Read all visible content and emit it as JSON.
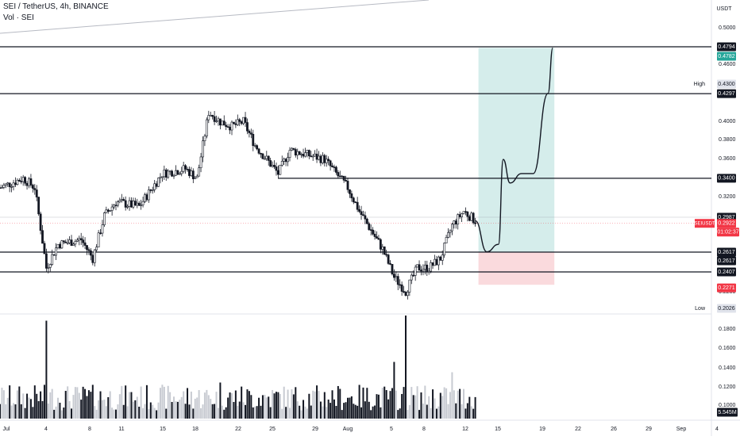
{
  "header": {
    "title": "SEI / TetherUS, 4h, BINANCE",
    "indicator": "Vol · SEI"
  },
  "price_axis": {
    "currency": "USDT",
    "ticks": [
      "0.5000",
      "0.4600",
      "0.4000",
      "0.3800",
      "0.3600",
      "0.3200",
      "0.2200",
      "0.1800",
      "0.1600",
      "0.1400",
      "0.1200",
      "0.1000"
    ]
  },
  "time_axis": {
    "ticks": [
      "Jul",
      "4",
      "8",
      "11",
      "15",
      "18",
      "22",
      "25",
      "29",
      "Aug",
      "5",
      "8",
      "12",
      "15",
      "19",
      "22",
      "26",
      "29",
      "Sep",
      "4"
    ]
  },
  "badges": {
    "level_top": "0.4794",
    "target": "0.4782",
    "high_label": "High",
    "high_value": "0.4300",
    "level_0_4297": "0.4297",
    "level_0_34": "0.3400",
    "level_0_2987": "0.2987",
    "symbol": "SEIUSDT",
    "last_price": "0.2922",
    "countdown": "01:02:37",
    "entry": "0.2617",
    "level_0_2617": "0.2617",
    "level_0_2407": "0.2407",
    "stop": "0.2271",
    "low_label": "Low",
    "low_value": "0.2026",
    "volume": "5.545M"
  },
  "colors": {
    "up": "#ffffff",
    "down": "#131722",
    "reward_zone": "#b2dfdb",
    "risk_zone": "#f8c6cb",
    "target_badge": "#26a69a",
    "price_badge": "#f23645",
    "stop_badge": "#f23645",
    "level_badge": "#131722"
  },
  "chart_data": {
    "type": "candlestick",
    "symbol": "SEI / TetherUS",
    "timeframe": "4h",
    "exchange": "BINANCE",
    "y_range": [
      0.19,
      0.51
    ],
    "last_price": 0.2922,
    "high": 0.43,
    "low": 0.2026,
    "horizontal_levels": [
      0.4794,
      0.4297,
      0.34,
      0.2617,
      0.2407
    ],
    "position": {
      "entry": 0.2617,
      "target": 0.4782,
      "stop": 0.2271
    },
    "close_path": [
      [
        "2024-07-01",
        0.33
      ],
      [
        "2024-07-03",
        0.34
      ],
      [
        "2024-07-04",
        0.33
      ],
      [
        "2024-07-05",
        0.245
      ],
      [
        "2024-07-06",
        0.27
      ],
      [
        "2024-07-08",
        0.275
      ],
      [
        "2024-07-09",
        0.255
      ],
      [
        "2024-07-10",
        0.3
      ],
      [
        "2024-07-11",
        0.315
      ],
      [
        "2024-07-13",
        0.31
      ],
      [
        "2024-07-15",
        0.345
      ],
      [
        "2024-07-17",
        0.35
      ],
      [
        "2024-07-18",
        0.34
      ],
      [
        "2024-07-19",
        0.41
      ],
      [
        "2024-07-20",
        0.4
      ],
      [
        "2024-07-21",
        0.395
      ],
      [
        "2024-07-22",
        0.4
      ],
      [
        "2024-07-23",
        0.375
      ],
      [
        "2024-07-25",
        0.345
      ],
      [
        "2024-07-26",
        0.37
      ],
      [
        "2024-07-29",
        0.36
      ],
      [
        "2024-07-31",
        0.33
      ],
      [
        "2024-08-01",
        0.305
      ],
      [
        "2024-08-03",
        0.265
      ],
      [
        "2024-08-04",
        0.235
      ],
      [
        "2024-08-05",
        0.22
      ],
      [
        "2024-08-06",
        0.245
      ],
      [
        "2024-08-07",
        0.245
      ],
      [
        "2024-08-08",
        0.255
      ],
      [
        "2024-08-09",
        0.29
      ],
      [
        "2024-08-10",
        0.305
      ],
      [
        "2024-08-11",
        0.295
      ]
    ],
    "projection": [
      [
        "2024-08-11",
        0.295
      ],
      [
        "2024-08-12",
        0.262
      ],
      [
        "2024-08-13",
        0.27
      ],
      [
        "2024-08-13",
        0.36
      ],
      [
        "2024-08-14",
        0.335
      ],
      [
        "2024-08-15",
        0.345
      ],
      [
        "2024-08-16",
        0.345
      ],
      [
        "2024-08-17",
        0.43
      ],
      [
        "2024-08-17",
        0.4782
      ]
    ],
    "volume_axis": [
      "0.1800",
      "0.1600",
      "0.1400",
      "0.1200",
      "0.1000"
    ],
    "last_volume": "5.545M"
  }
}
